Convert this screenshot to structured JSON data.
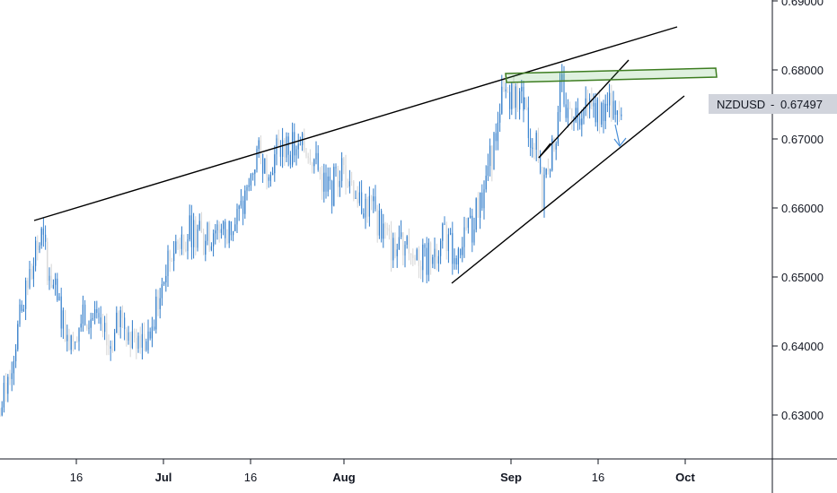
{
  "chart_data": {
    "type": "candlestick",
    "symbol": "NZDUSD",
    "last_price": "0.67497",
    "last_price_value": 0.67497,
    "y_axis": {
      "ticks": [
        "0.69000",
        "0.68000",
        "0.67000",
        "0.66000",
        "0.65000",
        "0.64000",
        "0.63000"
      ],
      "tick_values": [
        0.69,
        0.68,
        0.67,
        0.66,
        0.65,
        0.64,
        0.63
      ]
    },
    "x_axis": {
      "ticks": [
        {
          "label": "16",
          "bold": false
        },
        {
          "label": "Jul",
          "bold": true
        },
        {
          "label": "16",
          "bold": false
        },
        {
          "label": "Aug",
          "bold": true
        },
        {
          "label": "Sep",
          "bold": true
        },
        {
          "label": "16",
          "bold": false
        },
        {
          "label": "Oct",
          "bold": true
        }
      ]
    },
    "series": [
      {
        "close_path": [
          [
            0.0,
            0.63
          ],
          [
            0.03,
            0.641
          ],
          [
            0.06,
            0.651
          ],
          [
            0.08,
            0.656
          ],
          [
            0.09,
            0.652
          ],
          [
            0.11,
            0.646
          ],
          [
            0.13,
            0.641
          ],
          [
            0.15,
            0.643
          ],
          [
            0.17,
            0.645
          ],
          [
            0.19,
            0.642
          ],
          [
            0.21,
            0.64
          ],
          [
            0.23,
            0.644
          ],
          [
            0.25,
            0.642
          ],
          [
            0.27,
            0.641
          ],
          [
            0.29,
            0.642
          ],
          [
            0.31,
            0.649
          ],
          [
            0.33,
            0.654
          ],
          [
            0.35,
            0.656
          ],
          [
            0.37,
            0.657
          ],
          [
            0.39,
            0.655
          ],
          [
            0.41,
            0.657
          ],
          [
            0.43,
            0.656
          ],
          [
            0.45,
            0.658
          ],
          [
            0.47,
            0.661
          ],
          [
            0.49,
            0.668
          ],
          [
            0.51,
            0.666
          ],
          [
            0.53,
            0.668
          ],
          [
            0.55,
            0.669
          ],
          [
            0.57,
            0.668
          ],
          [
            0.59,
            0.669
          ],
          [
            0.61,
            0.665
          ],
          [
            0.63,
            0.662
          ],
          [
            0.65,
            0.666
          ],
          [
            0.67,
            0.664
          ],
          [
            0.69,
            0.661
          ],
          [
            0.71,
            0.66
          ],
          [
            0.73,
            0.657
          ],
          [
            0.75,
            0.654
          ],
          [
            0.77,
            0.655
          ],
          [
            0.79,
            0.654
          ],
          [
            0.81,
            0.652
          ],
          [
            0.83,
            0.654
          ],
          [
            0.85,
            0.656
          ],
          [
            0.87,
            0.653
          ],
          [
            0.88,
            0.654
          ],
          [
            0.9,
            0.657
          ],
          [
            0.92,
            0.662
          ],
          [
            0.94,
            0.668
          ],
          [
            0.955,
            0.675
          ],
          [
            0.97,
            0.677
          ],
          [
            0.985,
            0.676
          ]
        ],
        "part2": [
          [
            0.0,
            0.676
          ],
          [
            0.03,
            0.672
          ],
          [
            0.06,
            0.67
          ],
          [
            0.09,
            0.671
          ],
          [
            0.12,
            0.669
          ],
          [
            0.15,
            0.665
          ],
          [
            0.18,
            0.661
          ],
          [
            0.21,
            0.664
          ],
          [
            0.24,
            0.667
          ],
          [
            0.27,
            0.666
          ],
          [
            0.3,
            0.67
          ],
          [
            0.33,
            0.672
          ],
          [
            0.36,
            0.676
          ],
          [
            0.39,
            0.679
          ],
          [
            0.42,
            0.673
          ],
          [
            0.45,
            0.6745
          ]
        ]
      }
    ]
  }
}
